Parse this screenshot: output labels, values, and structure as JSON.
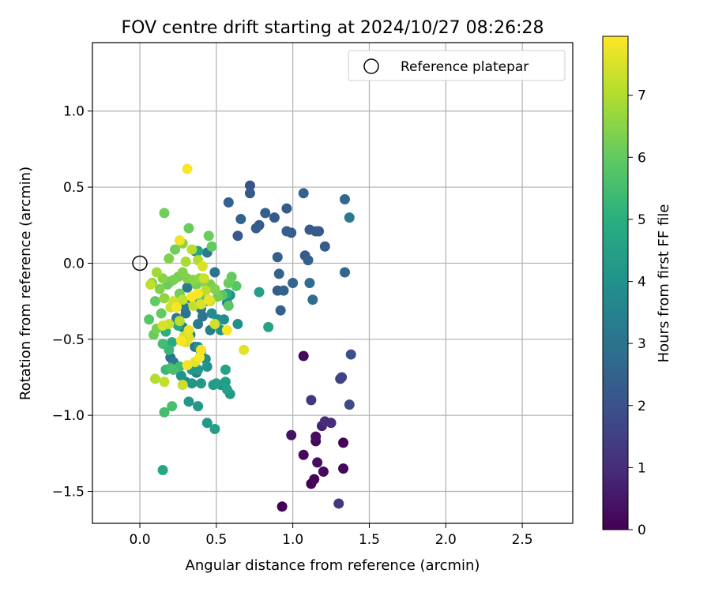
{
  "chart_data": {
    "type": "scatter",
    "title": "FOV centre drift starting at 2024/10/27 08:26:28",
    "xlabel": "Angular distance from reference (arcmin)",
    "ylabel": "Rotation from reference (arcmin)",
    "xlim": [
      -0.31,
      2.83
    ],
    "ylim": [
      -1.71,
      1.45
    ],
    "xticks": [
      0.0,
      0.5,
      1.0,
      1.5,
      2.0,
      2.5
    ],
    "xtick_labels": [
      "0.0",
      "0.5",
      "1.0",
      "1.5",
      "2.0",
      "2.5"
    ],
    "yticks": [
      1.0,
      0.5,
      0.0,
      -0.5,
      -1.0,
      -1.5
    ],
    "ytick_labels": [
      "1.0",
      "0.5",
      "0.0",
      "−0.5",
      "−1.0",
      "−1.5"
    ],
    "grid": true,
    "legend": {
      "placement": "top-right",
      "entries": [
        "Reference platepar"
      ]
    },
    "reference_point": {
      "x": 0.0,
      "y": 0.0
    },
    "colorbar": {
      "label": "Hours from first FF file",
      "colormap": "viridis",
      "range": [
        0,
        7.95
      ],
      "ticks": [
        0,
        1,
        2,
        3,
        4,
        5,
        6,
        7
      ],
      "tick_labels": [
        "0",
        "1",
        "2",
        "3",
        "4",
        "5",
        "6",
        "7"
      ]
    },
    "points": [
      [
        0.93,
        -1.6,
        0.05
      ],
      [
        1.12,
        -1.45,
        0.05
      ],
      [
        1.14,
        -1.42,
        0.1
      ],
      [
        1.2,
        -1.37,
        0.2
      ],
      [
        1.33,
        -1.35,
        0.15
      ],
      [
        1.16,
        -1.31,
        0.3
      ],
      [
        1.07,
        -1.26,
        0.15
      ],
      [
        1.15,
        -1.17,
        0.15
      ],
      [
        1.15,
        -1.14,
        0.3
      ],
      [
        1.33,
        -1.18,
        0.1
      ],
      [
        0.99,
        -1.13,
        0.4
      ],
      [
        1.07,
        -0.61,
        0.2
      ],
      [
        1.19,
        -1.07,
        0.8
      ],
      [
        1.21,
        -1.04,
        1.0
      ],
      [
        1.25,
        -1.05,
        1.0
      ],
      [
        1.12,
        -0.9,
        1.2
      ],
      [
        1.31,
        -0.76,
        1.5
      ],
      [
        1.32,
        -0.75,
        1.6
      ],
      [
        1.37,
        -0.93,
        1.8
      ],
      [
        1.38,
        -0.6,
        1.9
      ],
      [
        1.3,
        -1.58,
        1.3
      ],
      [
        0.72,
        0.51,
        2.0
      ],
      [
        0.72,
        0.46,
        2.2
      ],
      [
        0.58,
        0.4,
        2.5
      ],
      [
        0.66,
        0.29,
        2.5
      ],
      [
        0.64,
        0.18,
        2.2
      ],
      [
        0.76,
        0.23,
        2.3
      ],
      [
        0.78,
        0.25,
        2.2
      ],
      [
        0.82,
        0.33,
        2.4
      ],
      [
        0.88,
        0.3,
        2.2
      ],
      [
        0.96,
        0.36,
        2.3
      ],
      [
        0.96,
        0.21,
        2.4
      ],
      [
        0.99,
        0.2,
        2.3
      ],
      [
        1.07,
        0.46,
        2.5
      ],
      [
        1.11,
        0.22,
        2.2
      ],
      [
        1.15,
        0.21,
        2.2
      ],
      [
        1.17,
        0.21,
        2.2
      ],
      [
        1.21,
        0.11,
        2.3
      ],
      [
        1.08,
        0.05,
        2.2
      ],
      [
        1.1,
        0.02,
        2.4
      ],
      [
        1.34,
        0.42,
        2.7
      ],
      [
        1.37,
        0.3,
        3.2
      ],
      [
        0.9,
        0.04,
        2.4
      ],
      [
        0.91,
        -0.07,
        2.5
      ],
      [
        0.94,
        -0.18,
        2.5
      ],
      [
        0.9,
        -0.18,
        2.3
      ],
      [
        1.0,
        -0.13,
        2.6
      ],
      [
        1.11,
        -0.13,
        2.8
      ],
      [
        1.13,
        -0.24,
        2.8
      ],
      [
        0.92,
        -0.31,
        2.4
      ],
      [
        1.34,
        -0.06,
        2.6
      ],
      [
        0.49,
        -0.06,
        3.0
      ],
      [
        0.44,
        0.07,
        3.2
      ],
      [
        0.36,
        0.08,
        3.0
      ],
      [
        0.31,
        -0.16,
        3.2
      ],
      [
        0.34,
        -0.24,
        3.3
      ],
      [
        0.4,
        -0.3,
        3.1
      ],
      [
        0.38,
        -0.4,
        3.2
      ],
      [
        0.33,
        -0.47,
        3.3
      ],
      [
        0.3,
        -0.33,
        3.0
      ],
      [
        0.28,
        -0.42,
        3.4
      ],
      [
        0.24,
        -0.36,
        3.2
      ],
      [
        0.37,
        -0.72,
        3.3
      ],
      [
        0.22,
        -0.65,
        3.2
      ],
      [
        0.2,
        -0.62,
        3.0
      ],
      [
        0.46,
        -0.44,
        3.4
      ],
      [
        0.51,
        -0.37,
        3.3
      ],
      [
        0.41,
        -0.35,
        3.1
      ],
      [
        0.29,
        -0.29,
        3.2
      ],
      [
        0.36,
        -0.55,
        3.0
      ],
      [
        0.43,
        -0.25,
        3.7
      ],
      [
        0.47,
        -0.33,
        3.8
      ],
      [
        0.55,
        -0.37,
        3.9
      ],
      [
        0.57,
        -0.26,
        3.6
      ],
      [
        0.51,
        -0.38,
        4.0
      ],
      [
        0.53,
        -0.44,
        3.9
      ],
      [
        0.64,
        -0.4,
        3.9
      ],
      [
        0.59,
        -0.21,
        4.0
      ],
      [
        0.38,
        -0.55,
        3.9
      ],
      [
        0.4,
        -0.58,
        4.0
      ],
      [
        0.43,
        -0.63,
        3.8
      ],
      [
        0.38,
        -0.7,
        4.2
      ],
      [
        0.44,
        -0.68,
        4.0
      ],
      [
        0.34,
        -0.7,
        4.1
      ],
      [
        0.3,
        -0.78,
        3.8
      ],
      [
        0.27,
        -0.74,
        4.0
      ],
      [
        0.34,
        -0.79,
        4.1
      ],
      [
        0.4,
        -0.79,
        4.2
      ],
      [
        0.48,
        -0.8,
        4.3
      ],
      [
        0.5,
        -0.79,
        4.4
      ],
      [
        0.56,
        -0.78,
        4.4
      ],
      [
        0.57,
        -0.83,
        4.5
      ],
      [
        0.59,
        -0.86,
        4.3
      ],
      [
        0.53,
        -0.8,
        4.0
      ],
      [
        0.56,
        -0.7,
        4.6
      ],
      [
        0.32,
        -0.91,
        4.2
      ],
      [
        0.38,
        -0.94,
        4.2
      ],
      [
        0.44,
        -1.05,
        4.3
      ],
      [
        0.49,
        -1.09,
        4.5
      ],
      [
        0.15,
        -1.36,
        4.7
      ],
      [
        0.78,
        -0.19,
        4.5
      ],
      [
        0.84,
        -0.42,
        4.6
      ],
      [
        0.38,
        0.08,
        4.6
      ],
      [
        0.57,
        -0.2,
        4.8
      ],
      [
        0.25,
        -0.41,
        4.8
      ],
      [
        0.21,
        -0.52,
        4.8
      ],
      [
        0.17,
        -0.45,
        5.0
      ],
      [
        0.19,
        -0.57,
        5.3
      ],
      [
        0.15,
        -0.53,
        5.5
      ],
      [
        0.17,
        -0.7,
        5.3
      ],
      [
        0.16,
        -0.98,
        5.5
      ],
      [
        0.21,
        -0.94,
        5.6
      ],
      [
        0.2,
        -0.69,
        5.5
      ],
      [
        0.22,
        -0.7,
        5.6
      ],
      [
        0.26,
        -0.68,
        5.4
      ],
      [
        0.06,
        -0.37,
        5.8
      ],
      [
        0.09,
        -0.47,
        6.1
      ],
      [
        0.1,
        -0.25,
        6.0
      ],
      [
        0.11,
        -0.43,
        6.3
      ],
      [
        0.14,
        -0.33,
        6.0
      ],
      [
        0.18,
        -0.14,
        6.1
      ],
      [
        0.2,
        -0.12,
        6.0
      ],
      [
        0.22,
        -0.11,
        6.3
      ],
      [
        0.25,
        -0.09,
        6.2
      ],
      [
        0.28,
        -0.06,
        6.4
      ],
      [
        0.31,
        -0.1,
        6.4
      ],
      [
        0.35,
        -0.11,
        6.5
      ],
      [
        0.37,
        -0.14,
        6.2
      ],
      [
        0.39,
        -0.1,
        6.6
      ],
      [
        0.42,
        -0.12,
        6.4
      ],
      [
        0.46,
        -0.14,
        6.3
      ],
      [
        0.49,
        -0.17,
        6.4
      ],
      [
        0.51,
        -0.22,
        6.2
      ],
      [
        0.54,
        -0.21,
        5.9
      ],
      [
        0.58,
        -0.13,
        6.1
      ],
      [
        0.6,
        -0.09,
        6.0
      ],
      [
        0.63,
        -0.15,
        5.8
      ],
      [
        0.58,
        -0.28,
        5.9
      ],
      [
        0.39,
        -0.21,
        6.0
      ],
      [
        0.26,
        -0.2,
        6.2
      ],
      [
        0.16,
        -0.23,
        6.6
      ],
      [
        0.13,
        -0.17,
        6.4
      ],
      [
        0.08,
        -0.13,
        6.4
      ],
      [
        0.11,
        -0.06,
        6.8
      ],
      [
        0.15,
        -0.1,
        6.5
      ],
      [
        0.19,
        0.03,
        6.4
      ],
      [
        0.23,
        0.09,
        6.2
      ],
      [
        0.28,
        0.13,
        6.5
      ],
      [
        0.32,
        0.23,
        6.1
      ],
      [
        0.45,
        0.18,
        6.1
      ],
      [
        0.47,
        0.11,
        6.0
      ],
      [
        0.16,
        0.33,
        6.2
      ],
      [
        0.3,
        0.01,
        6.9
      ],
      [
        0.34,
        0.09,
        7.1
      ],
      [
        0.38,
        0.02,
        7.0
      ],
      [
        0.42,
        -0.1,
        7.3
      ],
      [
        0.43,
        -0.18,
        7.1
      ],
      [
        0.46,
        -0.25,
        7.4
      ],
      [
        0.4,
        -0.27,
        7.5
      ],
      [
        0.35,
        -0.28,
        7.2
      ],
      [
        0.28,
        -0.24,
        7.2
      ],
      [
        0.22,
        -0.25,
        7.4
      ],
      [
        0.2,
        -0.29,
        7.3
      ],
      [
        0.15,
        -0.41,
        7.5
      ],
      [
        0.19,
        -0.4,
        7.3
      ],
      [
        0.26,
        -0.38,
        7.1
      ],
      [
        0.29,
        -0.48,
        7.4
      ],
      [
        0.3,
        -0.52,
        7.5
      ],
      [
        0.32,
        -0.49,
        7.6
      ],
      [
        0.4,
        -0.57,
        7.8
      ],
      [
        0.39,
        -0.62,
        7.9
      ],
      [
        0.36,
        -0.65,
        7.6
      ],
      [
        0.31,
        -0.67,
        7.8
      ],
      [
        0.28,
        -0.8,
        7.3
      ],
      [
        0.16,
        -0.78,
        7.2
      ],
      [
        0.1,
        -0.76,
        7.0
      ],
      [
        0.49,
        -0.4,
        7.4
      ],
      [
        0.57,
        -0.44,
        7.9
      ],
      [
        0.68,
        -0.57,
        7.6
      ],
      [
        0.38,
        -0.2,
        7.9
      ],
      [
        0.45,
        -0.24,
        7.7
      ],
      [
        0.07,
        -0.14,
        7.2
      ],
      [
        0.26,
        0.15,
        7.8
      ],
      [
        0.41,
        -0.02,
        7.5
      ],
      [
        0.31,
        0.62,
        7.9
      ],
      [
        0.34,
        -0.22,
        7.95
      ],
      [
        0.27,
        -0.51,
        7.9
      ],
      [
        0.24,
        -0.29,
        7.9
      ],
      [
        0.32,
        -0.44,
        7.7
      ]
    ]
  }
}
